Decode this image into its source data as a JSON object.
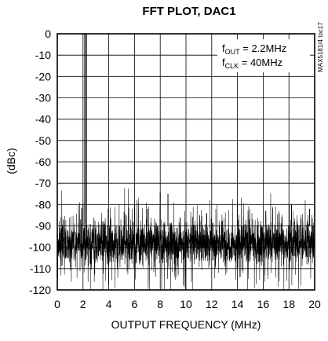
{
  "chart_data": {
    "type": "line",
    "title": "FFT PLOT, DAC1",
    "xlabel": "OUTPUT FREQUENCY (MHz)",
    "ylabel": "(dBc)",
    "xlim": [
      0,
      20
    ],
    "ylim": [
      -120,
      0
    ],
    "x_ticks": [
      "0",
      "2",
      "4",
      "6",
      "8",
      "10",
      "12",
      "14",
      "16",
      "18",
      "20"
    ],
    "y_ticks": [
      "0",
      "-10",
      "-20",
      "-30",
      "-40",
      "-50",
      "-60",
      "-70",
      "-80",
      "-90",
      "-100",
      "-110",
      "-120"
    ],
    "grid": true,
    "annotation": {
      "fout_prefix": "f",
      "fout_sub": "OUT",
      "fout_value": " = 2.2MHz",
      "fclk_prefix": "f",
      "fclk_sub": "CLK",
      "fclk_value": " = 40MHz"
    },
    "side_label": "MAX5181/4 toc17",
    "noise_floor_dbc": -98,
    "fundamental": {
      "x": 2.2,
      "y": 0
    },
    "spurs": [
      {
        "x": 2.0,
        "y": -80
      },
      {
        "x": 7.0,
        "y": -82
      },
      {
        "x": 8.0,
        "y": -74
      },
      {
        "x": 8.6,
        "y": -75
      },
      {
        "x": 14.0,
        "y": -79
      },
      {
        "x": 16.2,
        "y": -83
      },
      {
        "x": 18.2,
        "y": -80
      },
      {
        "x": 19.6,
        "y": -82
      }
    ],
    "series_color": "#000000"
  }
}
